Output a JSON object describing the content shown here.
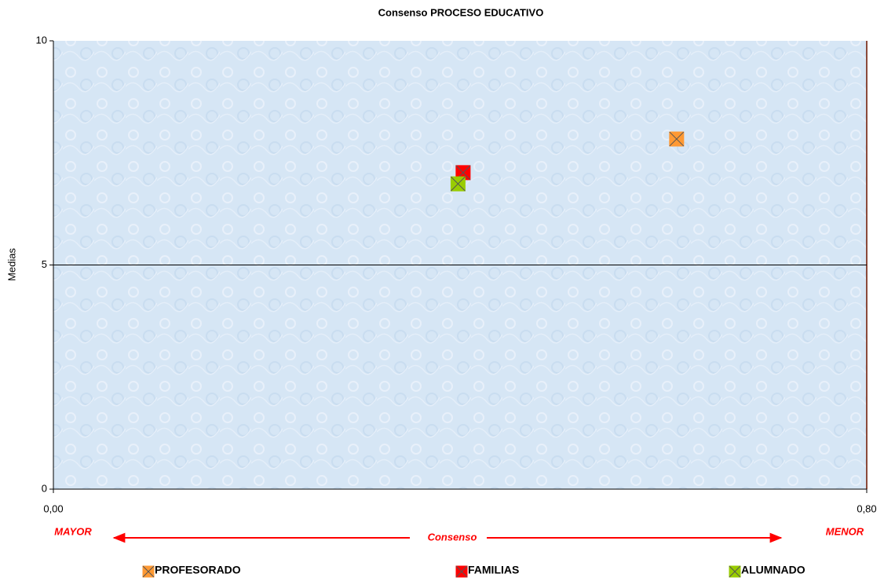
{
  "chart_data": {
    "type": "scatter",
    "title": "Consenso PROCESO EDUCATIVO",
    "y_label": "Medias",
    "annotations": [
      "MAYOR",
      "Consenso",
      "MENOR"
    ],
    "xlim": [
      0,
      0.8
    ],
    "xticks": [
      {
        "value": 0,
        "label": "0,00"
      },
      {
        "value": 0.8,
        "label": "0,80"
      }
    ],
    "ylim": [
      0,
      10
    ],
    "yticks": [
      0,
      5,
      10
    ],
    "grid": true,
    "series": [
      {
        "name": "PROFESORADO",
        "color": "#ff9933",
        "x": [
          0.613
        ],
        "values": [
          7.81
        ]
      },
      {
        "name": "FAMILIAS",
        "color": "#ff0000",
        "x": [
          0.403
        ],
        "values": [
          7.06
        ]
      },
      {
        "name": "ALUMNADO",
        "color": "#99cc00",
        "x": [
          0.398
        ],
        "values": [
          6.81
        ]
      }
    ]
  }
}
